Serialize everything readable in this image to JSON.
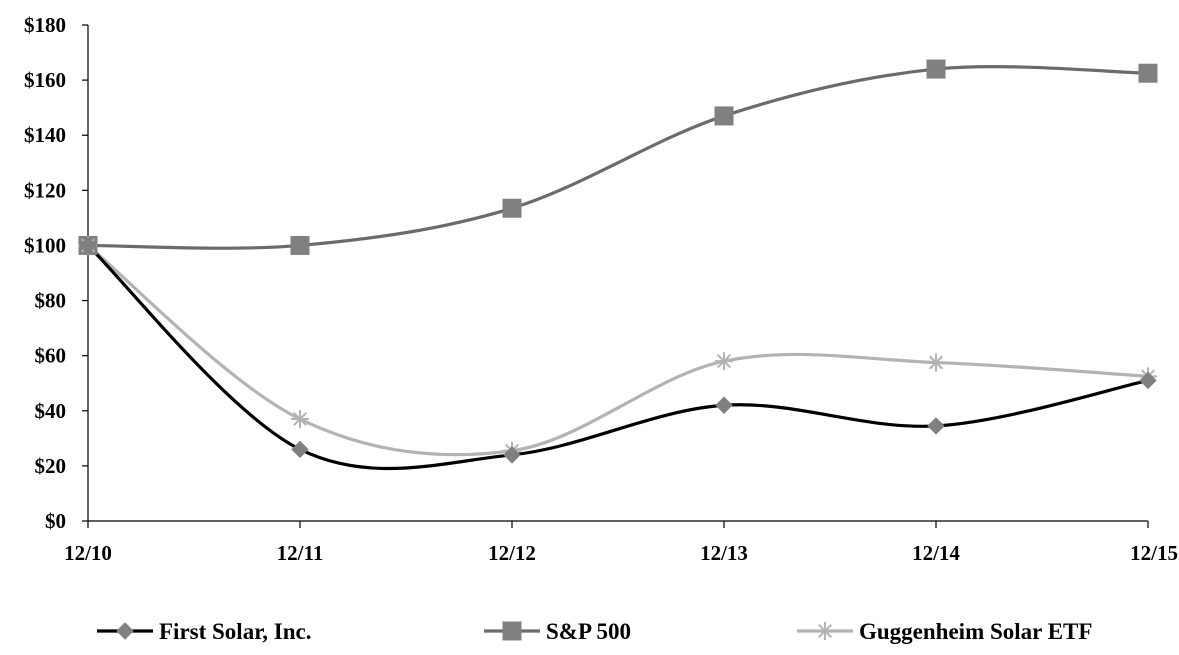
{
  "chart_data": {
    "type": "line",
    "title": "",
    "xlabel": "",
    "ylabel": "",
    "categories": [
      "12/10",
      "12/11",
      "12/12",
      "12/13",
      "12/14",
      "12/15"
    ],
    "ylim": [
      0,
      180
    ],
    "yticks": [
      0,
      20,
      40,
      60,
      80,
      100,
      120,
      140,
      160,
      180
    ],
    "ytick_labels": [
      "$0",
      "$20",
      "$40",
      "$60",
      "$80",
      "$100",
      "$120",
      "$140",
      "$160",
      "$180"
    ],
    "grid": false,
    "legend_position": "bottom",
    "series": [
      {
        "name": "First Solar, Inc.",
        "values": [
          100,
          26,
          24,
          42,
          34.5,
          51
        ],
        "color": "#000000",
        "marker": "diamond",
        "marker_color": "#808080"
      },
      {
        "name": "S&P 500",
        "values": [
          100,
          100,
          113.5,
          147,
          164,
          162.5
        ],
        "color": "#6b6b6b",
        "marker": "square",
        "marker_color": "#808080"
      },
      {
        "name": "Guggenheim Solar ETF",
        "values": [
          100,
          37,
          25.5,
          58,
          57.5,
          52.5
        ],
        "color": "#b3b3b3",
        "marker": "asterisk",
        "marker_color": "#b3b3b3"
      }
    ]
  }
}
